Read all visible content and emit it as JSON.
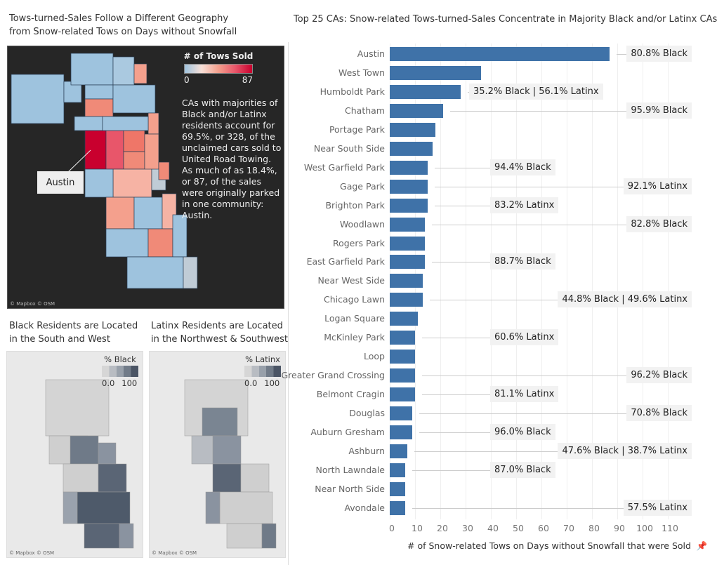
{
  "left": {
    "title_line1": "Tows-turned-Sales Follow a Different Geography",
    "title_line2": "from Snow-related Tows on Days without Snowfall",
    "map": {
      "legend_title": "# of Tows Sold",
      "legend_min": "0",
      "legend_max": "87",
      "note": "CAs with majorities of Black and/or Latinx residents account for 69.5%, or 328, of the unclaimed cars sold to United Road Towing. As much of as 18.4%, or 87, of the sales were originally parked in one community: Austin.",
      "callout": "Austin",
      "credit": "© Mapbox © OSM",
      "colors": {
        "low": "#9ec3de",
        "mid": "#f4a08d",
        "high": "#c9002e"
      }
    },
    "black_map": {
      "title_line1": "Black Residents are Located",
      "title_line2": "in the South and West",
      "legend_title": "% Black",
      "legend_min": "0.0",
      "legend_max": "100",
      "credit": "© Mapbox © OSM"
    },
    "latinx_map": {
      "title_line1": "Latinx Residents are Located",
      "title_line2": "in the Northwest & Southwest",
      "legend_title": "% Latinx",
      "legend_min": "0.0",
      "legend_max": "100",
      "credit": "© Mapbox © OSM"
    }
  },
  "chart_data": {
    "type": "bar",
    "orientation": "horizontal",
    "title": "Top 25 CAs: Snow-related Tows-turned-Sales Concentrate in Majority Black and/or Latinx CAs",
    "xlabel": "# of Snow-related Tows on Days without Snowfall that were Sold",
    "xlim": [
      0,
      115
    ],
    "xticks": [
      "0",
      "10",
      "20",
      "30",
      "40",
      "50",
      "60",
      "70",
      "80",
      "90",
      "100",
      "110"
    ],
    "grid": true,
    "bar_color": "#3f72a8",
    "categories": [
      "Austin",
      "West Town",
      "Humboldt Park",
      "Chatham",
      "Portage Park",
      "Near South Side",
      "West Garfield Park",
      "Gage Park",
      "Brighton Park",
      "Woodlawn",
      "Rogers Park",
      "East Garfield Park",
      "Near West Side",
      "Chicago Lawn",
      "Logan Square",
      "McKinley Park",
      "Loop",
      "Greater Grand Crossing",
      "Belmont Cragin",
      "Douglas",
      "Auburn Gresham",
      "Ashburn",
      "North Lawndale",
      "Near North Side",
      "Avondale"
    ],
    "values": [
      87,
      36,
      28,
      21,
      18,
      17,
      15,
      15,
      15,
      14,
      14,
      14,
      13,
      13,
      11,
      10,
      10,
      10,
      10,
      9,
      9,
      7,
      6,
      6,
      6
    ],
    "annotations": [
      {
        "index": 0,
        "text": "80.8% Black",
        "position": "right"
      },
      {
        "index": 2,
        "text": "35.2% Black | 56.1% Latinx",
        "position": "middle-wide"
      },
      {
        "index": 3,
        "text": "95.9% Black",
        "position": "right"
      },
      {
        "index": 6,
        "text": "94.4% Black",
        "position": "middle"
      },
      {
        "index": 7,
        "text": "92.1% Latinx",
        "position": "right"
      },
      {
        "index": 8,
        "text": "83.2% Latinx",
        "position": "middle"
      },
      {
        "index": 9,
        "text": "82.8% Black",
        "position": "right"
      },
      {
        "index": 11,
        "text": "88.7% Black",
        "position": "middle"
      },
      {
        "index": 13,
        "text": "44.8% Black | 49.6% Latinx",
        "position": "right"
      },
      {
        "index": 15,
        "text": "60.6% Latinx",
        "position": "middle"
      },
      {
        "index": 17,
        "text": "96.2% Black",
        "position": "right"
      },
      {
        "index": 18,
        "text": "81.1% Latinx",
        "position": "middle"
      },
      {
        "index": 19,
        "text": "70.8% Black",
        "position": "right"
      },
      {
        "index": 20,
        "text": "96.0% Black",
        "position": "middle"
      },
      {
        "index": 21,
        "text": "47.6% Black | 38.7% Latinx",
        "position": "right"
      },
      {
        "index": 22,
        "text": "87.0% Black",
        "position": "middle"
      },
      {
        "index": 24,
        "text": "57.5% Latinx",
        "position": "right"
      }
    ],
    "pin_icon": "pin-icon"
  }
}
